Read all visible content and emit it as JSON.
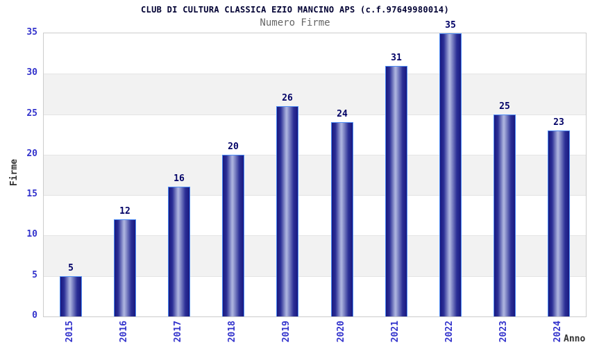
{
  "chart_data": {
    "type": "bar",
    "title": "CLUB DI CULTURA CLASSICA EZIO MANCINO APS (c.f.97649980014)",
    "subtitle": "Numero Firme",
    "xlabel": "Anno",
    "ylabel": "Firme",
    "categories": [
      "2015",
      "2016",
      "2017",
      "2018",
      "2019",
      "2020",
      "2021",
      "2022",
      "2023",
      "2024"
    ],
    "values": [
      5,
      12,
      16,
      20,
      26,
      24,
      31,
      35,
      25,
      23
    ],
    "ylim": [
      0,
      35
    ],
    "ytick_step": 5,
    "yticks": [
      0,
      5,
      10,
      15,
      20,
      25,
      30,
      35
    ],
    "grid": "horizontal-bands-alternating",
    "legend": "none",
    "bar_value_labels_shown": true
  },
  "colors": {
    "background": "#FFFFFF",
    "title": "#000033",
    "subtitle": "#666666",
    "plot_border": "#CCCCCC",
    "band_gray": "#F2F2F2",
    "gridline": "#E4E4E4",
    "bar_dark": "#191980",
    "bar_mid": "#2B2F96",
    "bar_highlight": "#AAB1DD",
    "bar_border": "#4D8CF5",
    "tick_label_blue": "#3333CC",
    "value_label_navy": "#000066",
    "axis_label_gray": "#333333"
  }
}
